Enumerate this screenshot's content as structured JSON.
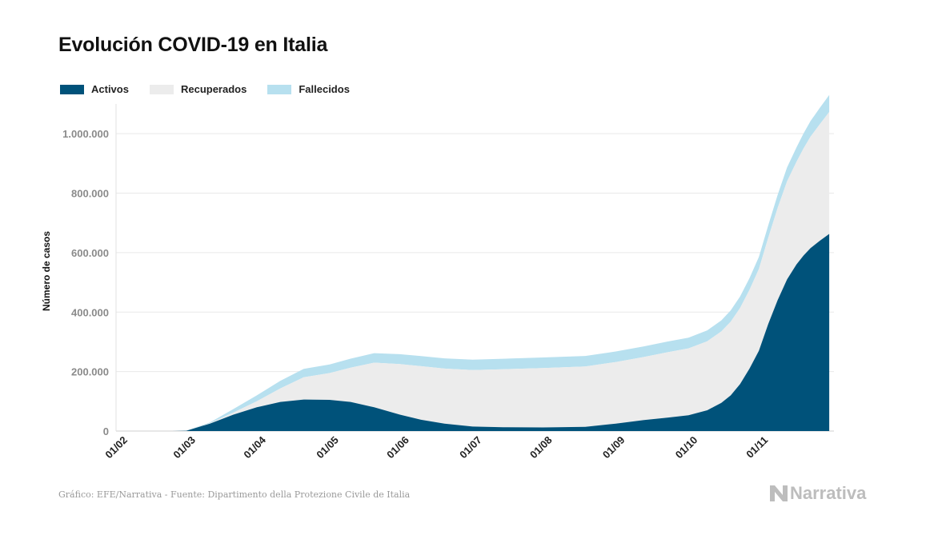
{
  "header": {
    "title": "Evolución COVID-19 en Italia"
  },
  "legend": [
    {
      "label": "Activos",
      "color": "#00527a"
    },
    {
      "label": "Recuperados",
      "color": "#ececec"
    },
    {
      "label": "Fallecidos",
      "color": "#b7e0ef"
    }
  ],
  "footer": {
    "source": "Gráfico: EFE/Narrativa - Fuente: Dipartimento della Protezione Civile de Italia",
    "logo_text": "Narrativa"
  },
  "chart_data": {
    "type": "area",
    "stacked": true,
    "title": "Evolución COVID-19 en Italia",
    "xlabel": "",
    "ylabel": "Número de casos",
    "ylim": [
      0,
      1100000
    ],
    "yticks": [
      0,
      200000,
      400000,
      600000,
      800000,
      1000000
    ],
    "ytick_labels": [
      "0",
      "200.000",
      "400.000",
      "600.000",
      "800.000",
      "1.000.000"
    ],
    "xticks": [
      1,
      30,
      60,
      91,
      121,
      152,
      182,
      213,
      244,
      274
    ],
    "xtick_labels": [
      "01/02",
      "01/03",
      "01/04",
      "01/05",
      "01/06",
      "01/07",
      "01/08",
      "01/09",
      "01/10",
      "01/11"
    ],
    "x_day_range": [
      0,
      306
    ],
    "day": [
      24,
      30,
      40,
      50,
      60,
      70,
      80,
      91,
      100,
      110,
      121,
      130,
      140,
      152,
      165,
      182,
      200,
      213,
      225,
      235,
      244,
      252,
      258,
      262,
      266,
      270,
      274,
      278,
      282,
      286,
      290,
      293,
      296,
      300,
      304
    ],
    "series": [
      {
        "name": "Activos",
        "color": "#00527a",
        "values": [
          0,
          1000,
          25000,
          55000,
          80000,
          98000,
          106000,
          105000,
          98000,
          80000,
          55000,
          38000,
          25000,
          15000,
          13000,
          12000,
          14000,
          25000,
          37000,
          45000,
          53000,
          70000,
          95000,
          120000,
          158000,
          210000,
          270000,
          360000,
          440000,
          510000,
          560000,
          590000,
          615000,
          640000,
          663000
        ]
      },
      {
        "name": "Recuperados",
        "color": "#ececec",
        "values": [
          0,
          500,
          1500,
          7000,
          20000,
          45000,
          75000,
          90000,
          115000,
          150000,
          170000,
          180000,
          185000,
          190000,
          195000,
          200000,
          203000,
          207000,
          212000,
          220000,
          225000,
          232000,
          240000,
          248000,
          256000,
          265000,
          275000,
          290000,
          310000,
          330000,
          345000,
          360000,
          375000,
          392000,
          410000
        ]
      },
      {
        "name": "Fallecidos",
        "color": "#b7e0ef",
        "values": [
          0,
          100,
          2500,
          12000,
          20000,
          25500,
          28000,
          29000,
          30500,
          32000,
          33400,
          34000,
          34500,
          34800,
          35100,
          35300,
          35500,
          35600,
          35800,
          36000,
          36200,
          36600,
          37200,
          37800,
          38500,
          39400,
          40500,
          42000,
          44000,
          46500,
          48500,
          50500,
          52500,
          55000,
          57000
        ]
      }
    ]
  }
}
